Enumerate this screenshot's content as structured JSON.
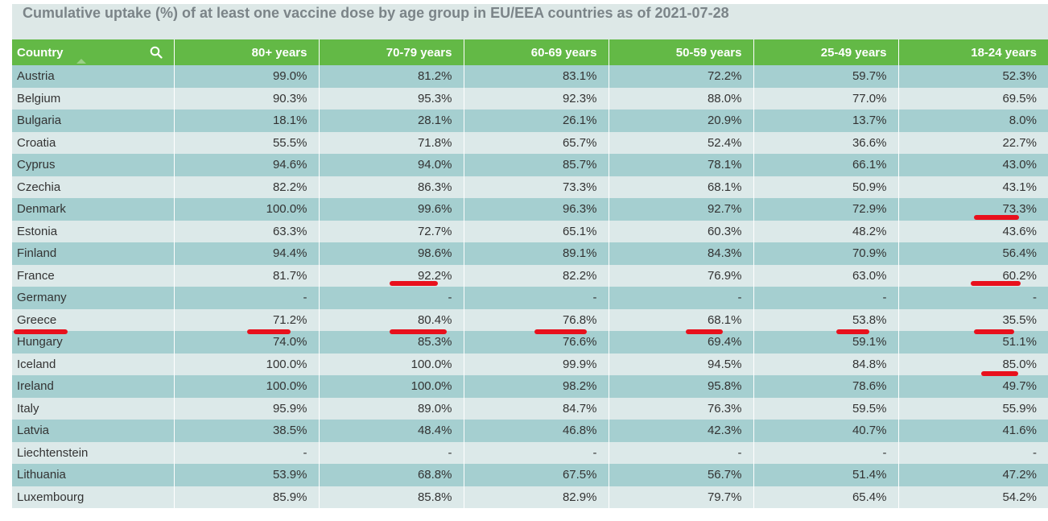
{
  "title": "Cumulative uptake (%) of at least one vaccine dose by age group in EU/EEA countries as of 2021-07-28",
  "columns": [
    "Country",
    "80+ years",
    "70-79 years",
    "60-69 years",
    "50-59 years",
    "25-49 years",
    "18-24 years"
  ],
  "rows": [
    [
      "Austria",
      "99.0%",
      "81.2%",
      "83.1%",
      "72.2%",
      "59.7%",
      "52.3%"
    ],
    [
      "Belgium",
      "90.3%",
      "95.3%",
      "92.3%",
      "88.0%",
      "77.0%",
      "69.5%"
    ],
    [
      "Bulgaria",
      "18.1%",
      "28.1%",
      "26.1%",
      "20.9%",
      "13.7%",
      "8.0%"
    ],
    [
      "Croatia",
      "55.5%",
      "71.8%",
      "65.7%",
      "52.4%",
      "36.6%",
      "22.7%"
    ],
    [
      "Cyprus",
      "94.6%",
      "94.0%",
      "85.7%",
      "78.1%",
      "66.1%",
      "43.0%"
    ],
    [
      "Czechia",
      "82.2%",
      "86.3%",
      "73.3%",
      "68.1%",
      "50.9%",
      "43.1%"
    ],
    [
      "Denmark",
      "100.0%",
      "99.6%",
      "96.3%",
      "92.7%",
      "72.9%",
      "73.3%"
    ],
    [
      "Estonia",
      "63.3%",
      "72.7%",
      "65.1%",
      "60.3%",
      "48.2%",
      "43.6%"
    ],
    [
      "Finland",
      "94.4%",
      "98.6%",
      "89.1%",
      "84.3%",
      "70.9%",
      "56.4%"
    ],
    [
      "France",
      "81.7%",
      "92.2%",
      "82.2%",
      "76.9%",
      "63.0%",
      "60.2%"
    ],
    [
      "Germany",
      "-",
      "-",
      "-",
      "-",
      "-",
      "-"
    ],
    [
      "Greece",
      "71.2%",
      "80.4%",
      "76.8%",
      "68.1%",
      "53.8%",
      "35.5%"
    ],
    [
      "Hungary",
      "74.0%",
      "85.3%",
      "76.6%",
      "69.4%",
      "59.1%",
      "51.1%"
    ],
    [
      "Iceland",
      "100.0%",
      "100.0%",
      "99.9%",
      "94.5%",
      "84.8%",
      "85.0%"
    ],
    [
      "Ireland",
      "100.0%",
      "100.0%",
      "98.2%",
      "95.8%",
      "78.6%",
      "49.7%"
    ],
    [
      "Italy",
      "95.9%",
      "89.0%",
      "84.7%",
      "76.3%",
      "59.5%",
      "55.9%"
    ],
    [
      "Latvia",
      "38.5%",
      "48.4%",
      "46.8%",
      "42.3%",
      "40.7%",
      "41.6%"
    ],
    [
      "Liechtenstein",
      "-",
      "-",
      "-",
      "-",
      "-",
      "-"
    ],
    [
      "Lithuania",
      "53.9%",
      "68.8%",
      "67.5%",
      "56.7%",
      "51.4%",
      "47.2%"
    ],
    [
      "Luxembourg",
      "85.9%",
      "85.8%",
      "82.9%",
      "79.7%",
      "65.4%",
      "54.2%"
    ]
  ],
  "accent_header": "#63b946",
  "highlight_color": "#e8101c"
}
